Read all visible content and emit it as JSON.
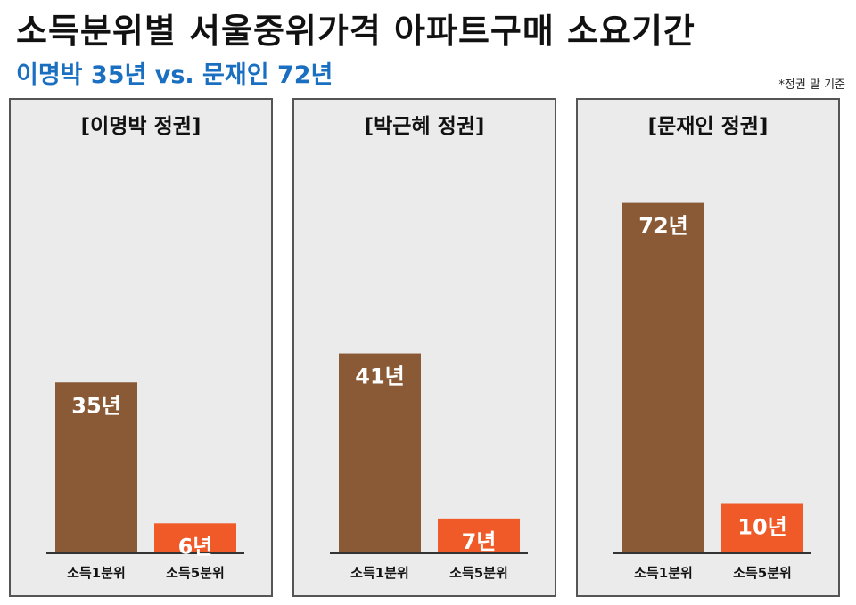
{
  "title": "소득분위별 서울중위가격 아파트구매 소요기간",
  "subtitle": "이명박 35년 vs. 문재인 72년",
  "note": "*정권 말 기준",
  "colors": {
    "q1": "#8a5a36",
    "q5": "#ef5a28",
    "subtitle": "#1a6fc0"
  },
  "chart_data": [
    {
      "type": "bar",
      "title": "[이명박 정권]",
      "categories": [
        "소득1분위",
        "소득5분위"
      ],
      "values": [
        35,
        6
      ],
      "value_labels": [
        "35년",
        "6년"
      ],
      "ylim": [
        0,
        80
      ]
    },
    {
      "type": "bar",
      "title": "[박근혜 정권]",
      "categories": [
        "소득1분위",
        "소득5분위"
      ],
      "values": [
        41,
        7
      ],
      "value_labels": [
        "41년",
        "7년"
      ],
      "ylim": [
        0,
        80
      ]
    },
    {
      "type": "bar",
      "title": "[문재인 정권]",
      "categories": [
        "소득1분위",
        "소득5분위"
      ],
      "values": [
        72,
        10
      ],
      "value_labels": [
        "72년",
        "10년"
      ],
      "ylim": [
        0,
        80
      ]
    }
  ]
}
